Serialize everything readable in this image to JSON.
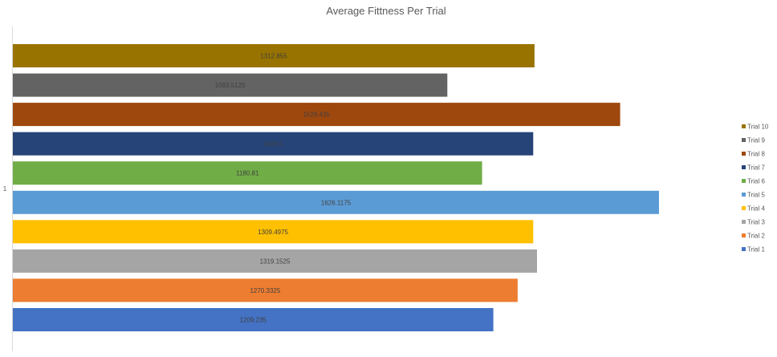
{
  "chart_data": {
    "type": "bar",
    "orientation": "horizontal",
    "title": "Average Fittness Per Trial",
    "category": "1",
    "xlim": [
      0,
      1626.1175
    ],
    "legend_position": "right",
    "series": [
      {
        "name": "Trial 1",
        "value": 1209.235,
        "label": "1209.235",
        "color": "#4472C4"
      },
      {
        "name": "Trial 2",
        "value": 1270.3325,
        "label": "1270.3325",
        "color": "#ED7D31"
      },
      {
        "name": "Trial 3",
        "value": 1319.1525,
        "label": "1319.1525",
        "color": "#A5A5A5"
      },
      {
        "name": "Trial 4",
        "value": 1309.4975,
        "label": "1309.4975",
        "color": "#FFC000"
      },
      {
        "name": "Trial 5",
        "value": 1626.1175,
        "label": "1626.1175",
        "color": "#5B9BD5"
      },
      {
        "name": "Trial 6",
        "value": 1180.81,
        "label": "1180.81",
        "color": "#70AD47"
      },
      {
        "name": "Trial 7",
        "value": 1309.5,
        "label": "1309.5",
        "color": "#264478"
      },
      {
        "name": "Trial 8",
        "value": 1528.435,
        "label": "1528.435",
        "color": "#9E480E"
      },
      {
        "name": "Trial 9",
        "value": 1093.5125,
        "label": "1093.5125",
        "color": "#636363"
      },
      {
        "name": "Trial 10",
        "value": 1312.855,
        "label": "1312.855",
        "color": "#997300"
      }
    ]
  }
}
